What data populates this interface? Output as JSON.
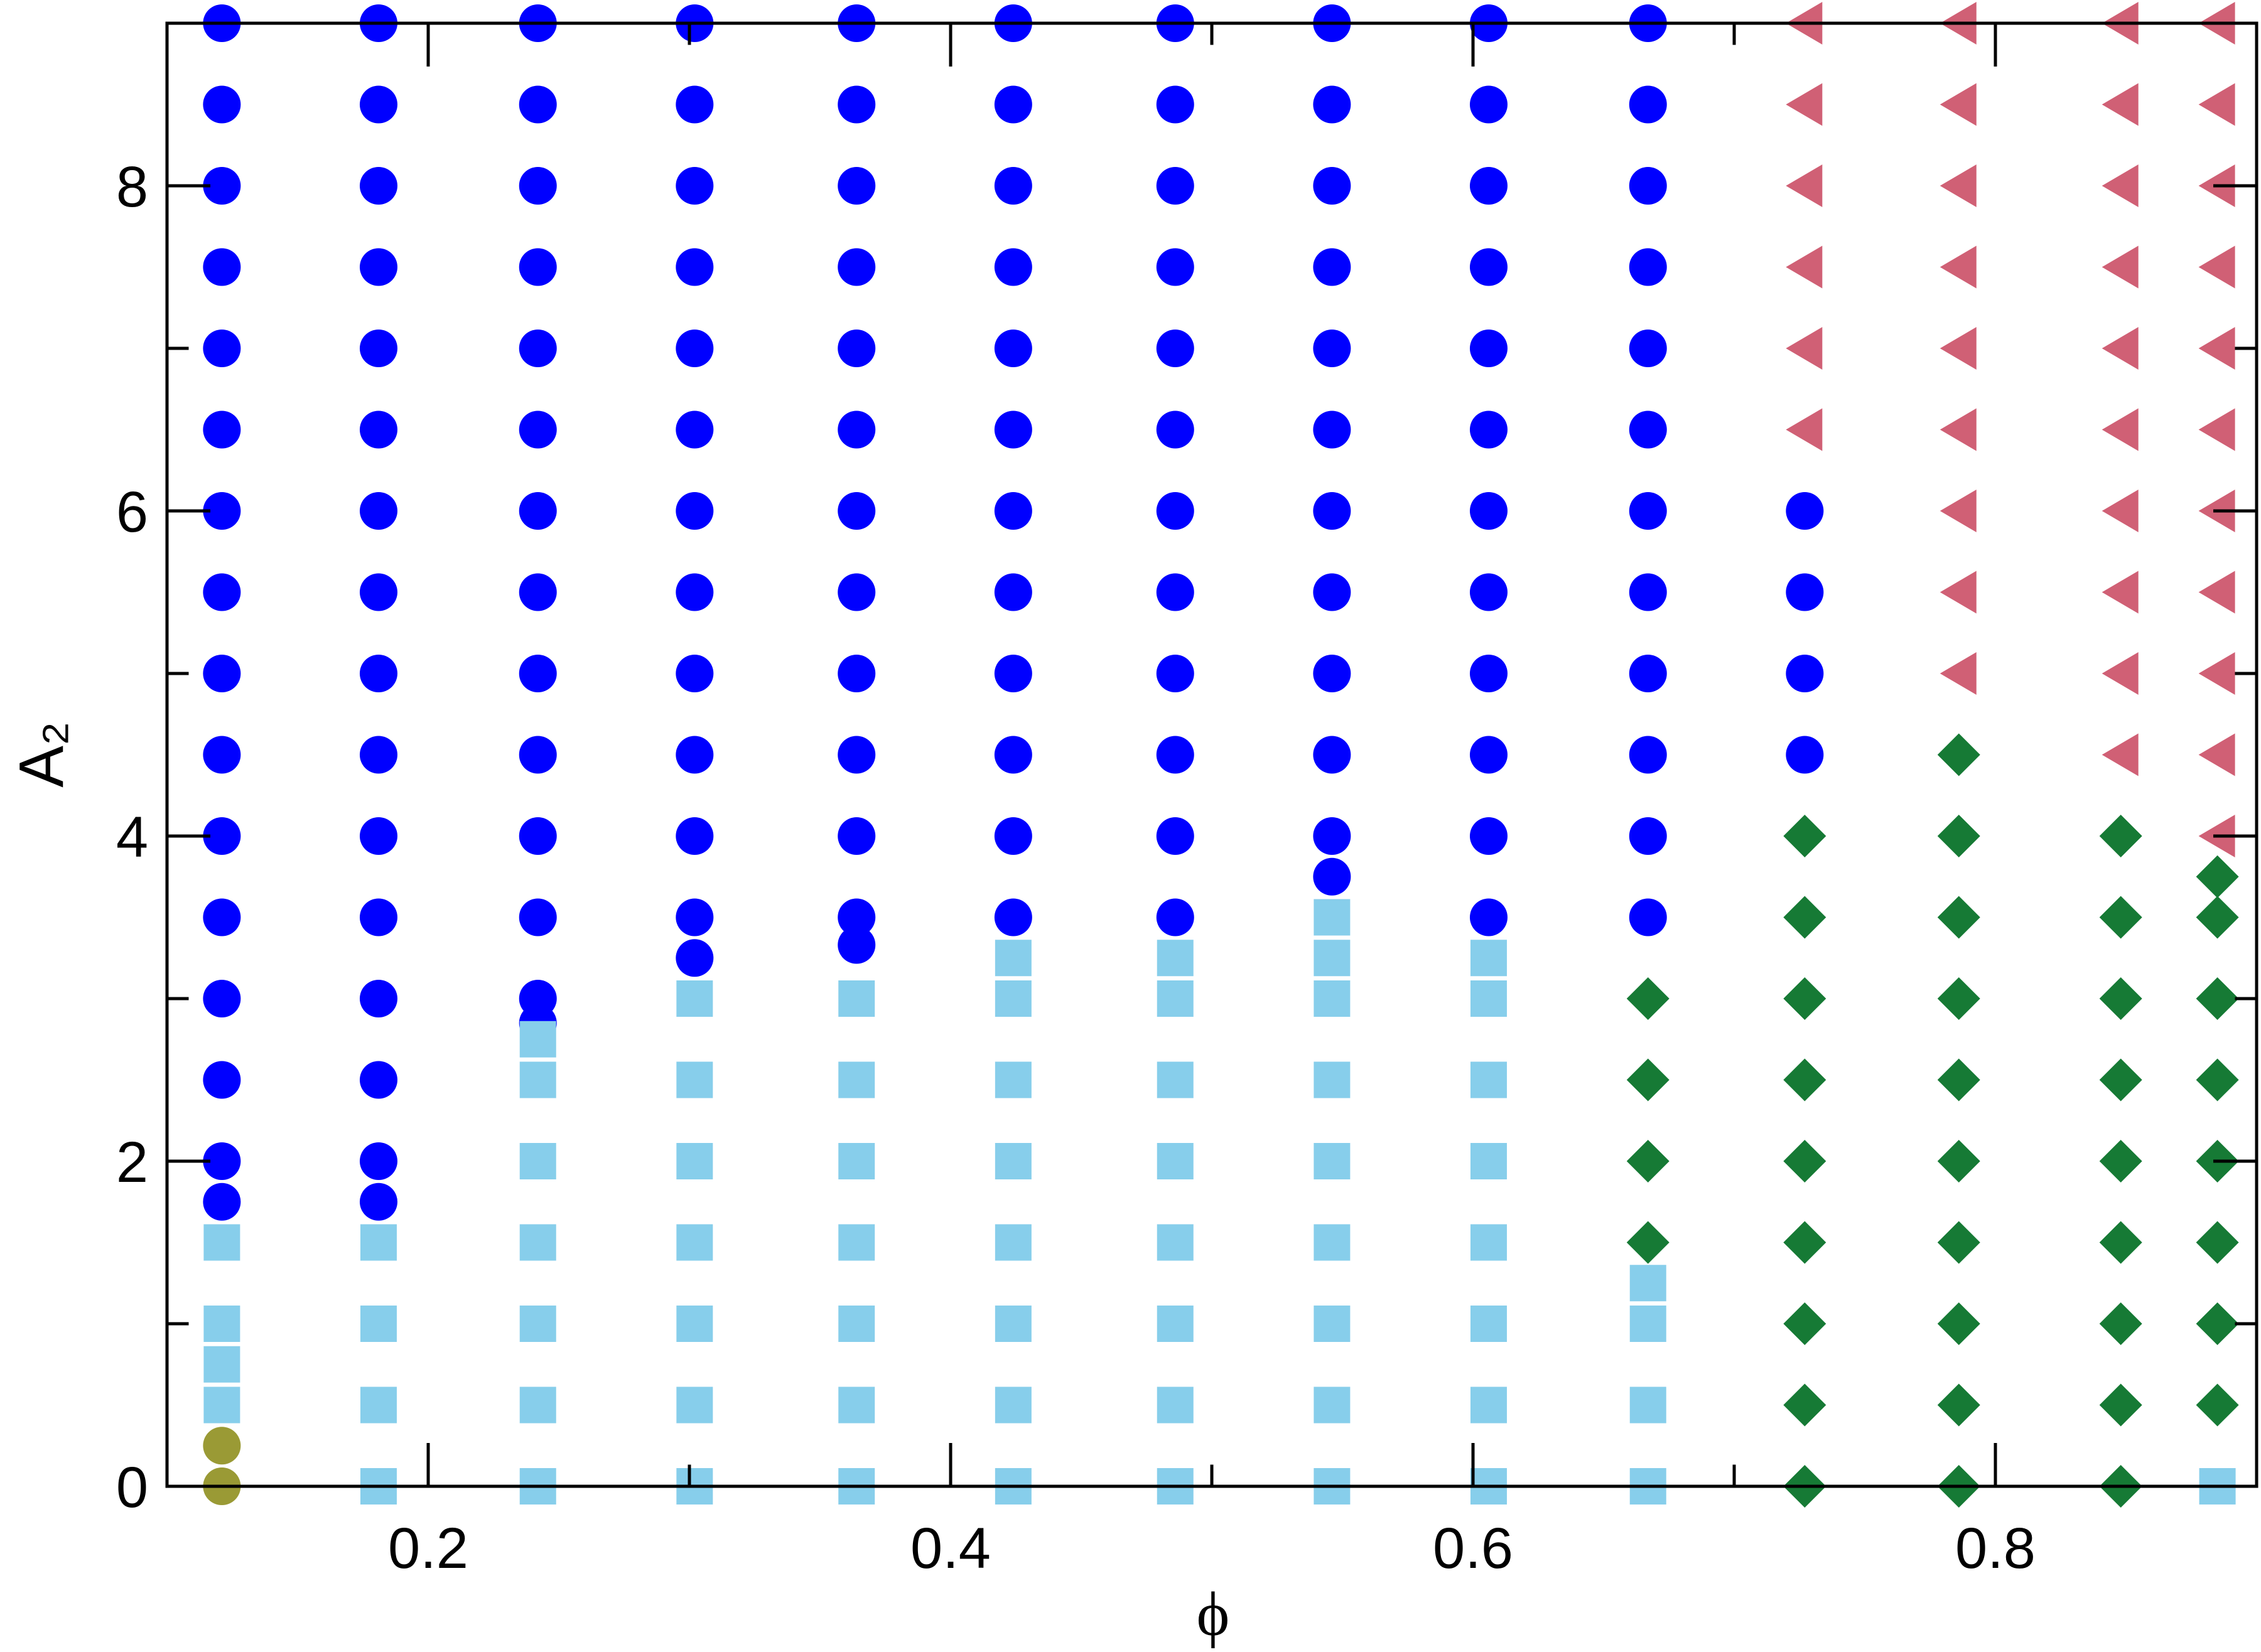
{
  "chart_data": {
    "type": "scatter",
    "x_label": "ϕ",
    "y_label": "A₂",
    "xlim": [
      0.1,
      0.9
    ],
    "ylim": [
      0,
      9
    ],
    "xticks": [
      0.2,
      0.4,
      0.6,
      0.8
    ],
    "yticks": [
      0,
      2,
      4,
      6,
      8
    ],
    "xminor": [
      0.3,
      0.5,
      0.7
    ],
    "yminor": [
      1,
      3,
      5,
      7
    ],
    "series": [
      {
        "color": "#0000ff",
        "marker": "circle",
        "x": [
          0.121,
          0.121,
          0.121,
          0.121,
          0.121,
          0.121,
          0.121,
          0.121,
          0.121,
          0.121,
          0.121,
          0.121,
          0.121,
          0.121,
          0.121,
          0.121,
          0.181,
          0.181,
          0.181,
          0.181,
          0.181,
          0.181,
          0.181,
          0.181,
          0.181,
          0.181,
          0.181,
          0.181,
          0.181,
          0.181,
          0.181,
          0.181,
          0.242,
          0.242,
          0.242,
          0.242,
          0.242,
          0.242,
          0.242,
          0.242,
          0.242,
          0.242,
          0.242,
          0.242,
          0.242,
          0.242,
          0.302,
          0.302,
          0.302,
          0.302,
          0.302,
          0.302,
          0.302,
          0.302,
          0.302,
          0.302,
          0.302,
          0.302,
          0.302,
          0.364,
          0.364,
          0.364,
          0.364,
          0.364,
          0.364,
          0.364,
          0.364,
          0.364,
          0.364,
          0.364,
          0.364,
          0.364,
          0.424,
          0.424,
          0.424,
          0.424,
          0.424,
          0.424,
          0.424,
          0.424,
          0.424,
          0.424,
          0.424,
          0.424,
          0.486,
          0.486,
          0.486,
          0.486,
          0.486,
          0.486,
          0.486,
          0.486,
          0.486,
          0.486,
          0.486,
          0.486,
          0.546,
          0.546,
          0.546,
          0.546,
          0.546,
          0.546,
          0.546,
          0.546,
          0.546,
          0.546,
          0.546,
          0.546,
          0.606,
          0.606,
          0.606,
          0.606,
          0.606,
          0.606,
          0.606,
          0.606,
          0.606,
          0.606,
          0.606,
          0.606,
          0.667,
          0.667,
          0.667,
          0.667,
          0.667,
          0.667,
          0.667,
          0.667,
          0.667,
          0.667,
          0.667,
          0.667,
          0.727,
          0.727,
          0.727,
          0.727
        ],
        "y": [
          1.75,
          2,
          2.5,
          3,
          3.5,
          4,
          4.5,
          5,
          5.5,
          6,
          6.5,
          7,
          7.5,
          8,
          8.5,
          9,
          1.75,
          2,
          2.5,
          3,
          3.5,
          4,
          4.5,
          5,
          5.5,
          6,
          6.5,
          7,
          7.5,
          8,
          8.5,
          9,
          2.85,
          3,
          3.5,
          4,
          4.5,
          5,
          5.5,
          6,
          6.5,
          7,
          7.5,
          8,
          8.5,
          9,
          3.25,
          3.5,
          4,
          4.5,
          5,
          5.5,
          6,
          6.5,
          7,
          7.5,
          8,
          8.5,
          9,
          3.33,
          3.5,
          4,
          4.5,
          5,
          5.5,
          6,
          6.5,
          7,
          7.5,
          8,
          8.5,
          9,
          3.5,
          4,
          4.5,
          5,
          5.5,
          6,
          6.5,
          7,
          7.5,
          8,
          8.5,
          9,
          3.5,
          4,
          4.5,
          5,
          5.5,
          6,
          6.5,
          7,
          7.5,
          8,
          8.5,
          9,
          3.75,
          4,
          4.5,
          5,
          5.5,
          6,
          6.5,
          7,
          7.5,
          8,
          8.5,
          9,
          3.5,
          4,
          4.5,
          5,
          5.5,
          6,
          6.5,
          7,
          7.5,
          8,
          8.5,
          9,
          3.5,
          4,
          4.5,
          5,
          5.5,
          6,
          6.5,
          7,
          7.5,
          8,
          8.5,
          9,
          4.5,
          5,
          5.5,
          6
        ]
      },
      {
        "color": "#87ceeb",
        "marker": "square",
        "x": [
          0.121,
          0.121,
          0.121,
          0.121,
          0.181,
          0.181,
          0.181,
          0.181,
          0.242,
          0.242,
          0.242,
          0.242,
          0.242,
          0.242,
          0.242,
          0.302,
          0.302,
          0.302,
          0.302,
          0.302,
          0.302,
          0.302,
          0.364,
          0.364,
          0.364,
          0.364,
          0.364,
          0.364,
          0.364,
          0.424,
          0.424,
          0.424,
          0.424,
          0.424,
          0.424,
          0.424,
          0.424,
          0.486,
          0.486,
          0.486,
          0.486,
          0.486,
          0.486,
          0.486,
          0.486,
          0.546,
          0.546,
          0.546,
          0.546,
          0.546,
          0.546,
          0.546,
          0.546,
          0.546,
          0.606,
          0.606,
          0.606,
          0.606,
          0.606,
          0.606,
          0.606,
          0.606,
          0.667,
          0.667,
          0.667,
          0.667,
          0.885
        ],
        "y": [
          0.5,
          0.75,
          1,
          1.5,
          0,
          0.5,
          1,
          1.5,
          0,
          0.5,
          1,
          1.5,
          2,
          2.5,
          2.75,
          0,
          0.5,
          1,
          1.5,
          2,
          2.5,
          3,
          0,
          0.5,
          1,
          1.5,
          2,
          2.5,
          3,
          0,
          0.5,
          1,
          1.5,
          2,
          2.5,
          3,
          3.25,
          0,
          0.5,
          1,
          1.5,
          2,
          2.5,
          3,
          3.25,
          0,
          0.5,
          1,
          1.5,
          2,
          2.5,
          3,
          3.25,
          3.5,
          0,
          0.5,
          1,
          1.5,
          2,
          2.5,
          3,
          3.25,
          0,
          0.5,
          1,
          1.25,
          0
        ]
      },
      {
        "color": "#9a9a35",
        "marker": "circle",
        "x": [
          0.121,
          0.121
        ],
        "y": [
          0,
          0.25
        ]
      },
      {
        "color": "#167a35",
        "marker": "diamond",
        "x": [
          0.667,
          0.667,
          0.667,
          0.667,
          0.727,
          0.727,
          0.727,
          0.727,
          0.727,
          0.727,
          0.727,
          0.727,
          0.727,
          0.786,
          0.786,
          0.786,
          0.786,
          0.786,
          0.786,
          0.786,
          0.786,
          0.786,
          0.786,
          0.848,
          0.848,
          0.848,
          0.848,
          0.848,
          0.848,
          0.848,
          0.848,
          0.848,
          0.885,
          0.885,
          0.885,
          0.885,
          0.885,
          0.885,
          0.885,
          0.885
        ],
        "y": [
          1.5,
          2,
          2.5,
          3,
          0,
          0.5,
          1,
          1.5,
          2,
          2.5,
          3,
          3.5,
          4,
          0,
          0.5,
          1,
          1.5,
          2,
          2.5,
          3,
          3.5,
          4,
          4.5,
          0,
          0.5,
          1,
          1.5,
          2,
          2.5,
          3,
          3.5,
          4,
          0.5,
          1,
          1.5,
          2,
          2.5,
          3,
          3.5,
          3.75
        ]
      },
      {
        "color": "#d06075",
        "marker": "triangle-left",
        "x": [
          0.727,
          0.727,
          0.727,
          0.727,
          0.727,
          0.727,
          0.786,
          0.786,
          0.786,
          0.786,
          0.786,
          0.786,
          0.786,
          0.786,
          0.786,
          0.848,
          0.848,
          0.848,
          0.848,
          0.848,
          0.848,
          0.848,
          0.848,
          0.848,
          0.848,
          0.885,
          0.885,
          0.885,
          0.885,
          0.885,
          0.885,
          0.885,
          0.885,
          0.885,
          0.885,
          0.885
        ],
        "y": [
          6.5,
          7,
          7.5,
          8,
          8.5,
          9,
          5,
          5.5,
          6,
          6.5,
          7,
          7.5,
          8,
          8.5,
          9,
          4.5,
          5,
          5.5,
          6,
          6.5,
          7,
          7.5,
          8,
          8.5,
          9,
          4,
          4.5,
          5,
          5.5,
          6,
          6.5,
          7,
          7.5,
          8,
          8.5,
          9
        ]
      }
    ]
  }
}
